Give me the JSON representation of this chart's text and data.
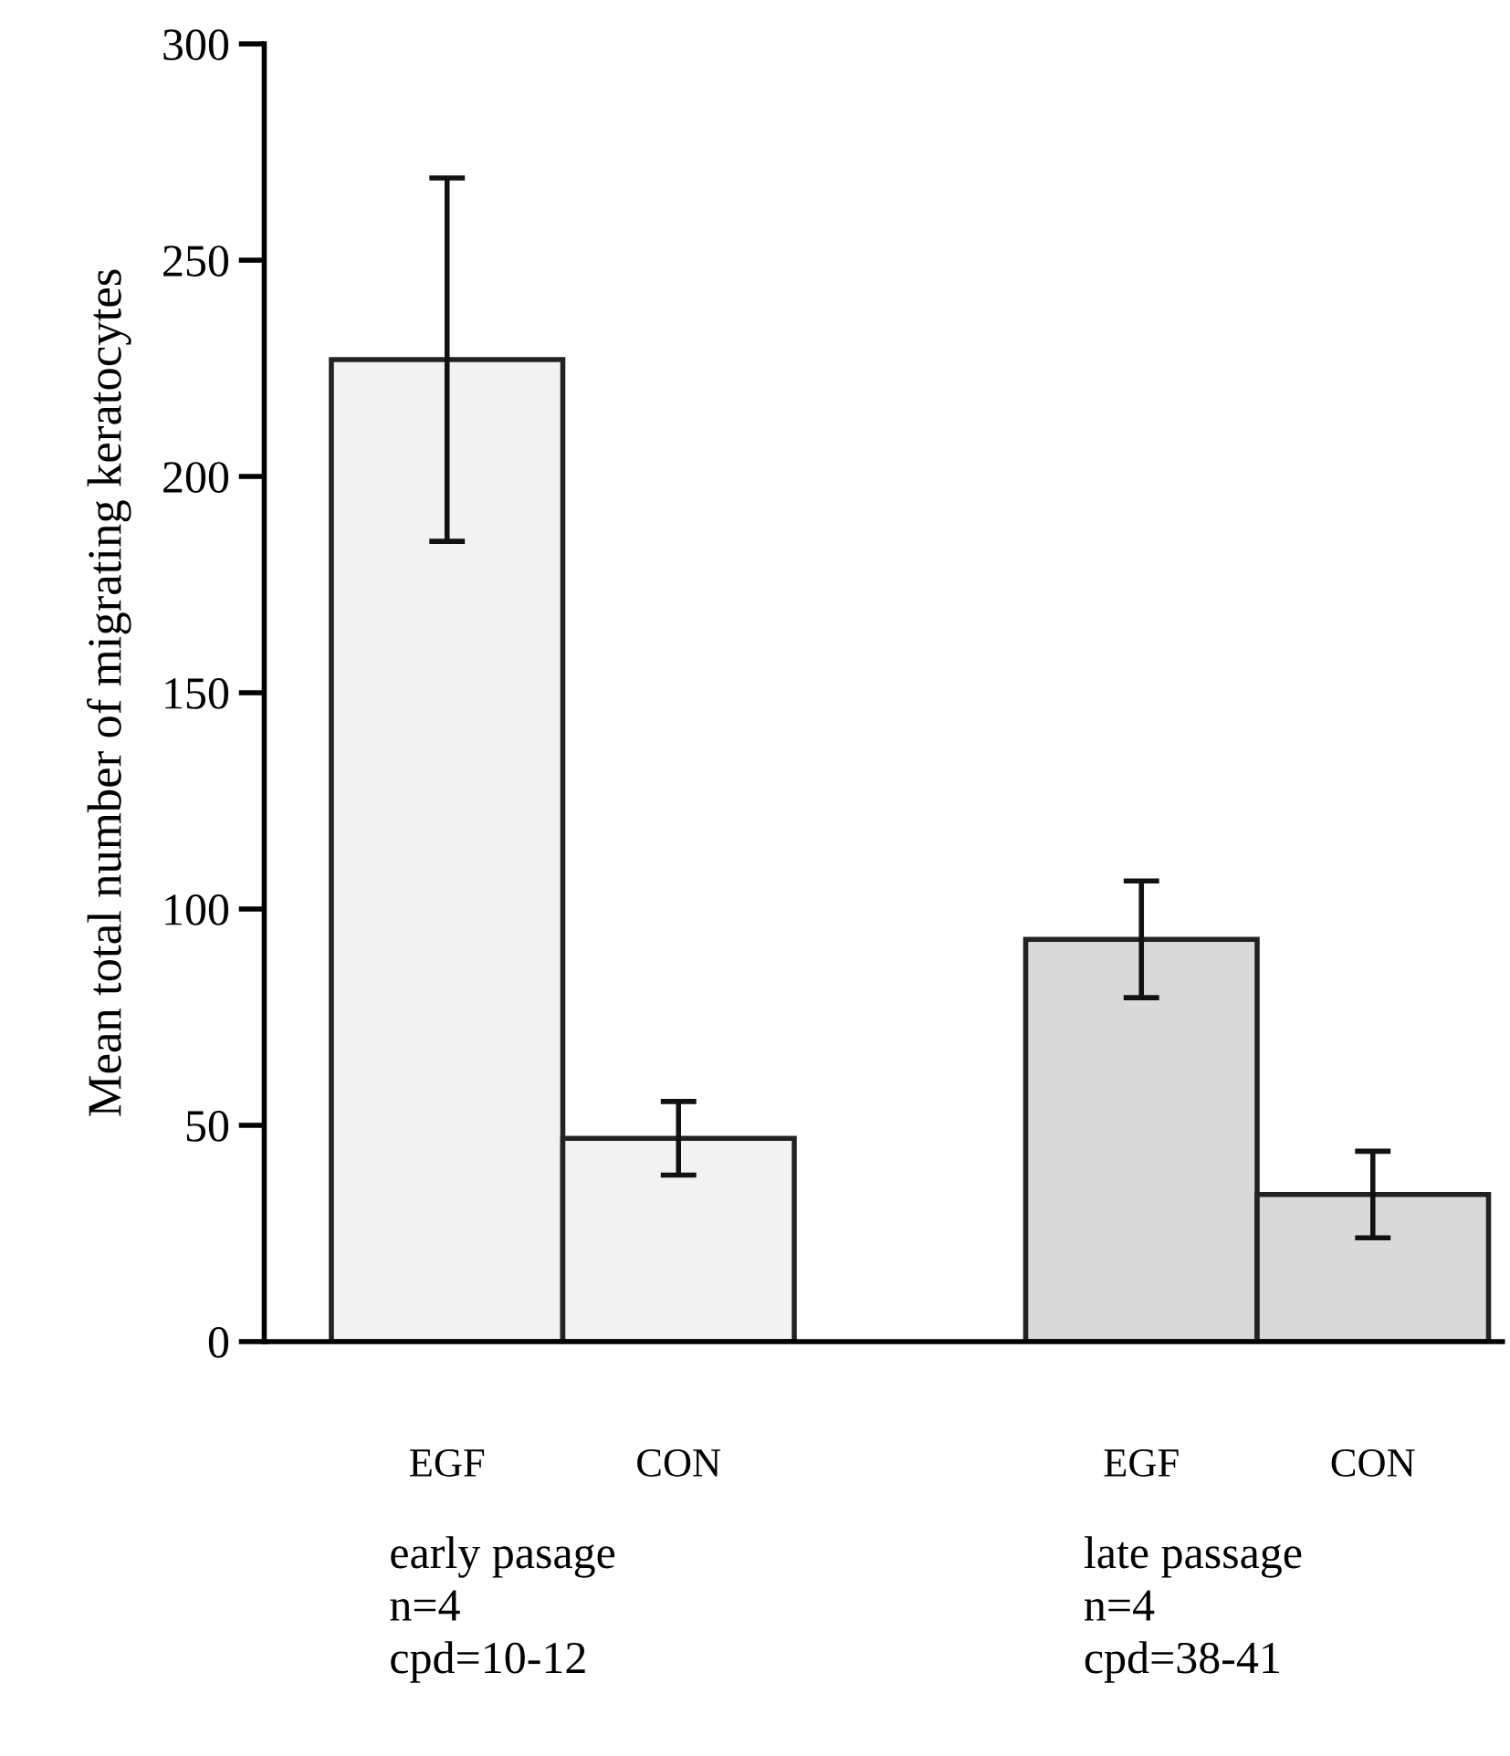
{
  "chart_data": {
    "type": "bar",
    "ylabel": "Mean total number of migrating keratocytes",
    "categories": [
      "EGF",
      "CON",
      null,
      "EGF",
      "CON"
    ],
    "values": [
      227,
      47,
      null,
      93,
      34
    ],
    "errors": [
      42,
      8.5,
      null,
      13.5,
      10
    ],
    "colors": [
      "#f2f2f2",
      "#f2f2f2",
      null,
      "#d9d9d9",
      "#d9d9d9"
    ],
    "ylim": [
      0,
      300
    ],
    "yticks": [
      0,
      50,
      100,
      150,
      200,
      250,
      300
    ],
    "grid": false,
    "legend": false,
    "annotations": [
      "early pasage\nn=4\ncpd=10-12",
      "late passage\nn=4\ncpd=38-41"
    ]
  }
}
